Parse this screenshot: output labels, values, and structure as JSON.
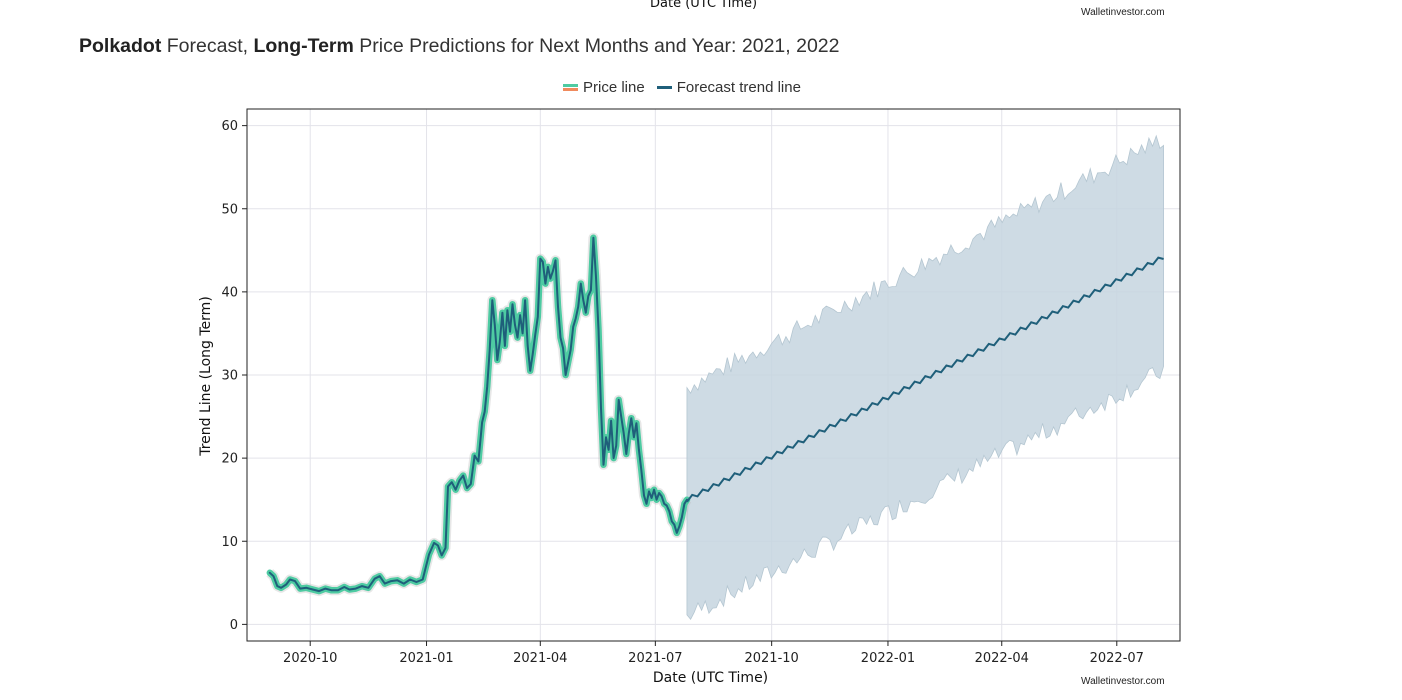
{
  "page": {
    "top_axis_label": "Date (UTC Time)",
    "credit_top": "Walletinvestor.com",
    "credit_bottom": "Walletinvestor.com",
    "heading": {
      "brand": "Polkadot",
      "part1": " Forecast, ",
      "bold2": "Long-Term",
      "part2": " Price Predictions for Next Months and Year: 2021, 2022"
    }
  },
  "colors": {
    "price_glow": "#4ecba2",
    "price_core": "#1f5f7a",
    "forecast": "#1f5f7a",
    "band": "#c5d5df",
    "band_edge": "#b4c6d1",
    "grid": "#e3e3ea",
    "legend_price_alt": "#f08a5d"
  },
  "chart_data": {
    "type": "line",
    "title": "",
    "xlabel": "Date (UTC Time)",
    "ylabel": "Trend Line (Long Term)",
    "ylim": [
      -2,
      62
    ],
    "xlim": [
      "2020-08-12",
      "2022-08-20"
    ],
    "yticks": [
      0,
      10,
      20,
      30,
      40,
      50,
      60
    ],
    "xticks": [
      "2020-10",
      "2021-01",
      "2021-04",
      "2021-07",
      "2021-10",
      "2022-01",
      "2022-04",
      "2022-07"
    ],
    "legend": [
      "Price line",
      "Forecast trend line"
    ],
    "legend_position": "top-center",
    "grid": true,
    "series": [
      {
        "name": "Price line",
        "points": [
          [
            "2020-08-30",
            6.2
          ],
          [
            "2020-09-02",
            5.8
          ],
          [
            "2020-09-05",
            4.6
          ],
          [
            "2020-09-08",
            4.4
          ],
          [
            "2020-09-12",
            4.8
          ],
          [
            "2020-09-15",
            5.4
          ],
          [
            "2020-09-19",
            5.2
          ],
          [
            "2020-09-23",
            4.3
          ],
          [
            "2020-09-28",
            4.4
          ],
          [
            "2020-10-03",
            4.2
          ],
          [
            "2020-10-08",
            4.0
          ],
          [
            "2020-10-13",
            4.3
          ],
          [
            "2020-10-18",
            4.1
          ],
          [
            "2020-10-23",
            4.1
          ],
          [
            "2020-10-28",
            4.5
          ],
          [
            "2020-11-01",
            4.2
          ],
          [
            "2020-11-06",
            4.3
          ],
          [
            "2020-11-11",
            4.6
          ],
          [
            "2020-11-16",
            4.4
          ],
          [
            "2020-11-21",
            5.5
          ],
          [
            "2020-11-25",
            5.8
          ],
          [
            "2020-11-29",
            4.9
          ],
          [
            "2020-12-04",
            5.2
          ],
          [
            "2020-12-09",
            5.3
          ],
          [
            "2020-12-14",
            4.9
          ],
          [
            "2020-12-19",
            5.4
          ],
          [
            "2020-12-24",
            5.1
          ],
          [
            "2020-12-29",
            5.4
          ],
          [
            "2021-01-03",
            8.4
          ],
          [
            "2021-01-07",
            9.8
          ],
          [
            "2021-01-10",
            9.5
          ],
          [
            "2021-01-13",
            8.3
          ],
          [
            "2021-01-16",
            9.2
          ],
          [
            "2021-01-18",
            16.6
          ],
          [
            "2021-01-21",
            17.1
          ],
          [
            "2021-01-24",
            16.2
          ],
          [
            "2021-01-27",
            17.3
          ],
          [
            "2021-01-30",
            17.9
          ],
          [
            "2021-02-02",
            16.4
          ],
          [
            "2021-02-05",
            16.9
          ],
          [
            "2021-02-08",
            20.3
          ],
          [
            "2021-02-11",
            19.6
          ],
          [
            "2021-02-14",
            24.3
          ],
          [
            "2021-02-16",
            25.6
          ],
          [
            "2021-02-18",
            28.6
          ],
          [
            "2021-02-20",
            33.0
          ],
          [
            "2021-02-22",
            39.0
          ],
          [
            "2021-02-24",
            36.0
          ],
          [
            "2021-02-26",
            31.8
          ],
          [
            "2021-02-28",
            34.0
          ],
          [
            "2021-03-02",
            37.5
          ],
          [
            "2021-03-04",
            33.5
          ],
          [
            "2021-03-06",
            37.8
          ],
          [
            "2021-03-08",
            35.2
          ],
          [
            "2021-03-10",
            38.5
          ],
          [
            "2021-03-12",
            36.0
          ],
          [
            "2021-03-14",
            34.5
          ],
          [
            "2021-03-16",
            37.2
          ],
          [
            "2021-03-18",
            35.0
          ],
          [
            "2021-03-20",
            39.0
          ],
          [
            "2021-03-22",
            33.5
          ],
          [
            "2021-03-24",
            30.5
          ],
          [
            "2021-03-26",
            32.5
          ],
          [
            "2021-03-28",
            34.8
          ],
          [
            "2021-03-30",
            37.0
          ],
          [
            "2021-04-01",
            44.0
          ],
          [
            "2021-04-03",
            43.6
          ],
          [
            "2021-04-05",
            41.0
          ],
          [
            "2021-04-07",
            43.0
          ],
          [
            "2021-04-09",
            41.6
          ],
          [
            "2021-04-11",
            42.5
          ],
          [
            "2021-04-13",
            43.8
          ],
          [
            "2021-04-15",
            38.2
          ],
          [
            "2021-04-17",
            34.5
          ],
          [
            "2021-04-19",
            33.2
          ],
          [
            "2021-04-21",
            30.0
          ],
          [
            "2021-04-23",
            31.5
          ],
          [
            "2021-04-25",
            33.0
          ],
          [
            "2021-04-27",
            35.8
          ],
          [
            "2021-04-29",
            36.8
          ],
          [
            "2021-05-01",
            38.2
          ],
          [
            "2021-05-03",
            41.0
          ],
          [
            "2021-05-05",
            39.0
          ],
          [
            "2021-05-07",
            37.5
          ],
          [
            "2021-05-09",
            39.5
          ],
          [
            "2021-05-11",
            40.2
          ],
          [
            "2021-05-13",
            46.5
          ],
          [
            "2021-05-15",
            42.0
          ],
          [
            "2021-05-17",
            35.5
          ],
          [
            "2021-05-19",
            26.0
          ],
          [
            "2021-05-21",
            19.2
          ],
          [
            "2021-05-23",
            22.5
          ],
          [
            "2021-05-25",
            21.0
          ],
          [
            "2021-05-27",
            24.5
          ],
          [
            "2021-05-29",
            20.0
          ],
          [
            "2021-05-31",
            21.5
          ],
          [
            "2021-06-02",
            27.0
          ],
          [
            "2021-06-04",
            25.0
          ],
          [
            "2021-06-06",
            23.0
          ],
          [
            "2021-06-08",
            20.5
          ],
          [
            "2021-06-10",
            23.0
          ],
          [
            "2021-06-12",
            24.8
          ],
          [
            "2021-06-14",
            22.5
          ],
          [
            "2021-06-16",
            24.2
          ],
          [
            "2021-06-18",
            21.0
          ],
          [
            "2021-06-20",
            18.5
          ],
          [
            "2021-06-22",
            15.5
          ],
          [
            "2021-06-24",
            14.5
          ],
          [
            "2021-06-26",
            16.0
          ],
          [
            "2021-06-28",
            15.2
          ],
          [
            "2021-06-30",
            16.2
          ],
          [
            "2021-07-02",
            15.0
          ],
          [
            "2021-07-04",
            15.8
          ],
          [
            "2021-07-06",
            15.4
          ],
          [
            "2021-07-08",
            14.5
          ],
          [
            "2021-07-10",
            14.3
          ],
          [
            "2021-07-12",
            13.6
          ],
          [
            "2021-07-14",
            12.4
          ],
          [
            "2021-07-16",
            12.0
          ],
          [
            "2021-07-18",
            11.0
          ],
          [
            "2021-07-20",
            11.8
          ],
          [
            "2021-07-22",
            12.9
          ],
          [
            "2021-07-24",
            14.5
          ],
          [
            "2021-07-26",
            15.0
          ]
        ]
      },
      {
        "name": "Forecast trend line",
        "points": [
          [
            "2021-07-26",
            15.0
          ],
          [
            "2022-08-07",
            44.2
          ]
        ]
      },
      {
        "name": "Forecast range",
        "type": "area",
        "x_range": [
          "2021-07-26",
          "2022-08-07"
        ],
        "upper": [
          28.5,
          58.5
        ],
        "lower": [
          1.0,
          30.5
        ]
      }
    ]
  }
}
